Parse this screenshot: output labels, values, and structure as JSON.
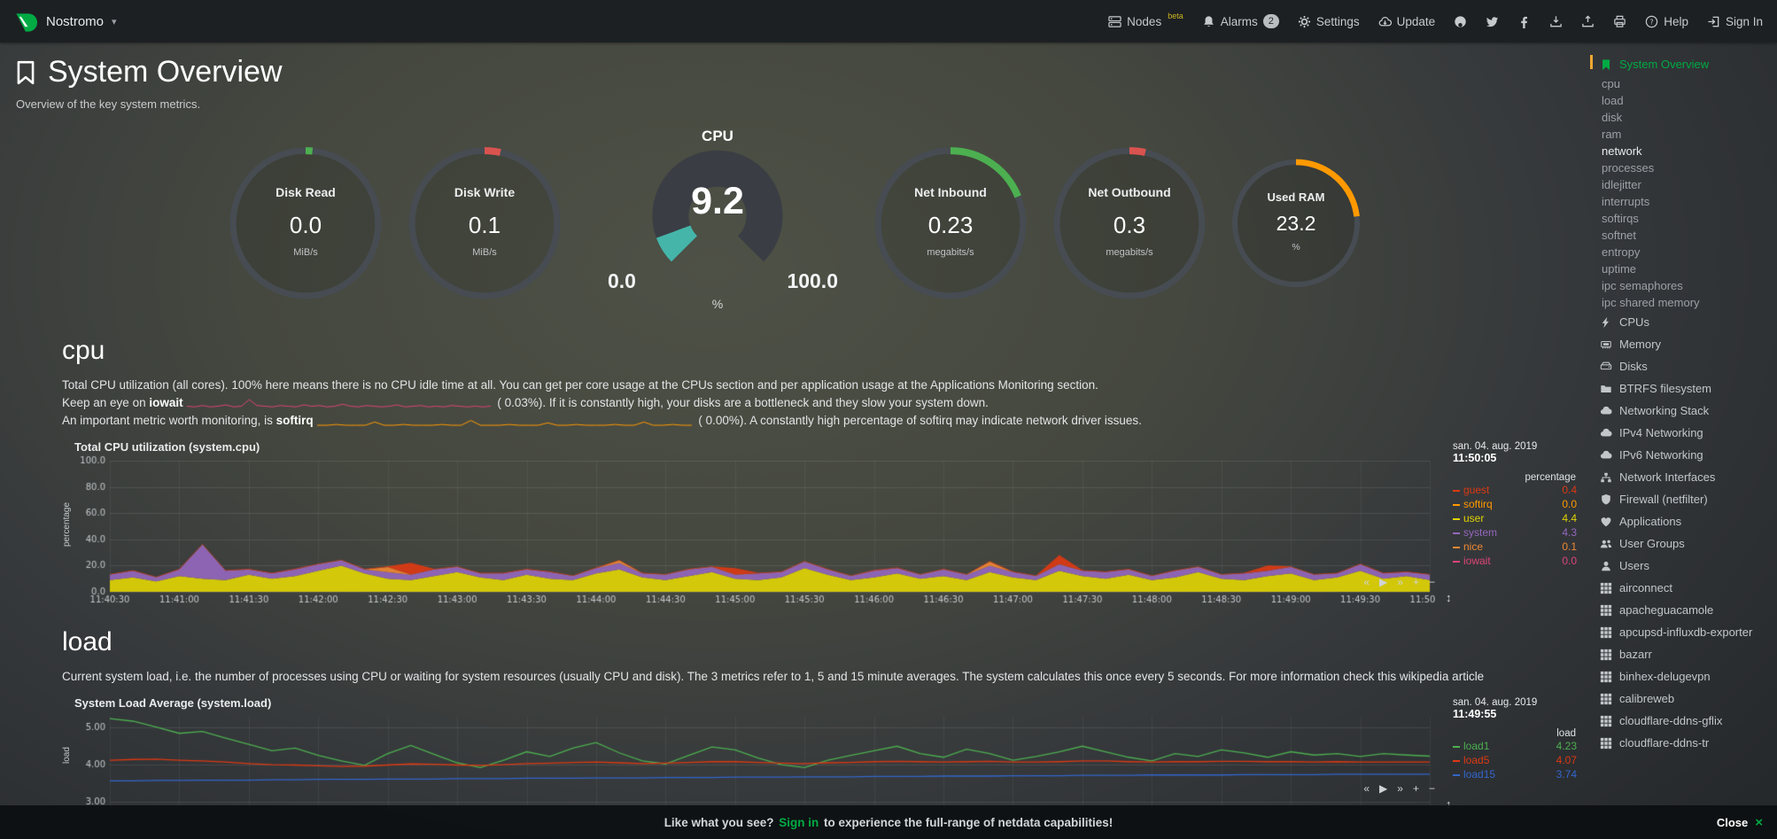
{
  "colors": {
    "accent_green": "#00ab44",
    "gauge_teal": "#45B5AA",
    "warn_orange": "#FF9900",
    "beta_yellow": "#CDB421",
    "scrollbar_amber": "#F0A732"
  },
  "topbar": {
    "brand": "Nostromo",
    "menu": [
      {
        "icon": "server",
        "label": "Nodes",
        "sup": "beta"
      },
      {
        "icon": "bell",
        "label": "Alarms",
        "badge": "2"
      },
      {
        "icon": "gear",
        "label": "Settings"
      },
      {
        "icon": "cloud-download",
        "label": "Update"
      },
      {
        "icon": "github",
        "label": ""
      },
      {
        "icon": "twitter",
        "label": ""
      },
      {
        "icon": "facebook",
        "label": ""
      },
      {
        "icon": "download",
        "label": ""
      },
      {
        "icon": "upload",
        "label": ""
      },
      {
        "icon": "print",
        "label": ""
      },
      {
        "icon": "help",
        "label": "Help"
      },
      {
        "icon": "signin",
        "label": "Sign In"
      }
    ]
  },
  "page": {
    "title": "System Overview",
    "subtitle": "Overview of the key system metrics."
  },
  "gauges": {
    "disk_read": {
      "title": "Disk Read",
      "value": "0.0",
      "unit": "MiB/s",
      "pct": 1.5,
      "color": "#4CAF50"
    },
    "disk_write": {
      "title": "Disk Write",
      "value": "0.1",
      "unit": "MiB/s",
      "pct": 3.5,
      "color": "#D9534F"
    },
    "cpu": {
      "title": "CPU",
      "value": "9.2",
      "min": "0.0",
      "max": "100.0",
      "unit": "%",
      "pct": 9.2,
      "color": "#45B5AA"
    },
    "net_inbound": {
      "title": "Net Inbound",
      "value": "0.23",
      "unit": "megabits/s",
      "pct": 19,
      "color": "#4CAF50"
    },
    "net_outbound": {
      "title": "Net Outbound",
      "value": "0.3",
      "unit": "megabits/s",
      "pct": 3.5,
      "color": "#D9534F"
    },
    "used_ram": {
      "title": "Used RAM",
      "value": "23.2",
      "unit": "%",
      "pct": 23.2,
      "color": "#FF9900"
    }
  },
  "cpu_section": {
    "heading": "cpu",
    "lines": [
      [
        {
          "t": "Total CPU utilization (all cores). 100% here means there is no CPU idle time at all. You can get per core usage at the CPUs section and per application usage at the Applications Monitoring section."
        }
      ],
      [
        {
          "t": "Keep an eye on "
        },
        {
          "t": "iowait",
          "b": true
        },
        {
          "spark": "iowait"
        },
        {
          "t": " ( 0.03%). If it is constantly high, your disks are a bottleneck and they slow your system down."
        }
      ],
      [
        {
          "t": "An important metric worth monitoring, is "
        },
        {
          "t": "softirq",
          "b": true
        },
        {
          "spark": "softirq"
        },
        {
          "t": " ( 0.00%). A constantly high percentage of softirq may indicate network driver issues."
        }
      ]
    ]
  },
  "load_section": {
    "heading": "load",
    "lines": [
      [
        {
          "t": "Current system load, i.e. the number of processes using CPU or waiting for system resources (usually CPU and disk). The 3 metrics refer to 1, 5 and 15 minute averages. The system calculates this once every 5 seconds. For more information check this wikipedia article"
        }
      ]
    ]
  },
  "sparklines": {
    "iowait": {
      "color": "#DD4477",
      "values": [
        0.2,
        0.1,
        0.3,
        0.1,
        0.2,
        0.4,
        0.1,
        0.2,
        1.2,
        0.3,
        0.2,
        0.1,
        0.3,
        0.2,
        0.1,
        0.4,
        0.2,
        0.3,
        0.1,
        0.2,
        0.5,
        0.2,
        0.1,
        0.3,
        0.2,
        0.1,
        0.2,
        0.4,
        0.1,
        0.2,
        0.3,
        0.1,
        0.2,
        0.1,
        0.3,
        0.2,
        0.1,
        0.2,
        0.1,
        0.2
      ]
    },
    "softirq": {
      "color": "#FF9900",
      "values": [
        0,
        0,
        0.1,
        0,
        0,
        0,
        0.4,
        0,
        0,
        0.1,
        0,
        0,
        0,
        0.1,
        0,
        0,
        0.6,
        0,
        0,
        0,
        0.1,
        0,
        0,
        0,
        0.3,
        0,
        0,
        0.1,
        0,
        0,
        0,
        0.1,
        0,
        0,
        0.4,
        0,
        0,
        0.1,
        0,
        0
      ]
    }
  },
  "chart_toolbar": {
    "icons": [
      "«",
      "▶",
      "»",
      "+",
      "−"
    ],
    "resize": "↕"
  },
  "chart_data": [
    {
      "id": "system.cpu",
      "type": "area",
      "stacked": true,
      "stack_order": [
        2,
        3,
        4,
        0,
        1,
        5
      ],
      "title": "Total CPU utilization (system.cpu)",
      "date_label": "san. 04. aug. 2019",
      "time_label": "11:50:05",
      "legend_header": "percentage",
      "ylabel": "percentage",
      "ylim": [
        0,
        100
      ],
      "yticks": [
        0,
        20,
        40,
        60,
        80,
        100
      ],
      "ytick_labels": [
        "0.0",
        "20.0",
        "40.0",
        "60.0",
        "80.0",
        "100.0"
      ],
      "xticks": [
        "11:40:30",
        "11:41:00",
        "11:41:30",
        "11:42:00",
        "11:42:30",
        "11:43:00",
        "11:43:30",
        "11:44:00",
        "11:44:30",
        "11:45:00",
        "11:45:30",
        "11:46:00",
        "11:46:30",
        "11:47:00",
        "11:47:30",
        "11:48:00",
        "11:48:30",
        "11:49:00",
        "11:49:30",
        "11:50:00"
      ],
      "show_xticks": true,
      "series": [
        {
          "name": "guest",
          "color": "#DC3912",
          "value": "0.4",
          "values": [
            0.4,
            0.4,
            0.4,
            0.4,
            0.4,
            0.4,
            0.4,
            0.4,
            0.4,
            0.4,
            0.4,
            0.4,
            0.4,
            9,
            0.4,
            0.4,
            0.4,
            0.4,
            0.4,
            0.4,
            0.4,
            0.4,
            0.4,
            0.4,
            0.4,
            0.4,
            0.4,
            5,
            0.4,
            0.4,
            0.4,
            0.4,
            0.4,
            0.4,
            0.4,
            0.4,
            0.4,
            0.4,
            0.4,
            0.4,
            0.4,
            7,
            0.4,
            0.4,
            0.4,
            0.4,
            0.4,
            0.4,
            0.4,
            0.4,
            4,
            0.4,
            0.4,
            0.4,
            0.4,
            0.4,
            0.4,
            0.4
          ]
        },
        {
          "name": "softirq",
          "color": "#FF9900",
          "value": "0.0",
          "values": [
            0,
            0,
            0,
            0,
            0,
            0,
            0,
            0,
            0,
            0,
            0,
            0,
            0,
            0,
            0,
            0,
            0,
            0,
            0,
            0,
            0,
            0,
            0,
            0,
            0,
            0,
            0,
            0,
            0,
            0,
            0,
            0,
            0,
            0,
            0,
            0,
            0,
            0,
            0,
            0,
            0,
            0,
            0,
            0,
            0,
            0,
            0,
            0,
            0,
            0,
            0,
            0,
            0,
            0,
            0,
            0,
            0,
            0
          ]
        },
        {
          "name": "user",
          "color": "#E0D404",
          "value": "4.4",
          "values": [
            9,
            11,
            8,
            12,
            10,
            9,
            13,
            10,
            12,
            16,
            20,
            14,
            10,
            9,
            12,
            15,
            11,
            9,
            13,
            10,
            9,
            14,
            17,
            11,
            9,
            12,
            15,
            10,
            9,
            11,
            18,
            13,
            9,
            11,
            14,
            10,
            12,
            9,
            15,
            11,
            9,
            16,
            12,
            10,
            13,
            9,
            11,
            15,
            10,
            9,
            12,
            14,
            9,
            11,
            16,
            10,
            12,
            9
          ]
        },
        {
          "name": "system",
          "color": "#9467BD",
          "value": "4.3",
          "values": [
            4,
            5,
            3,
            5,
            26,
            7,
            4,
            4,
            5,
            5,
            4,
            3,
            5,
            4,
            5,
            4,
            3,
            5,
            4,
            5,
            3,
            4,
            5,
            3,
            4,
            5,
            4,
            3,
            5,
            4,
            5,
            4,
            3,
            5,
            4,
            3,
            5,
            4,
            5,
            4,
            3,
            5,
            4,
            5,
            4,
            3,
            5,
            4,
            3,
            5,
            4,
            5,
            4,
            3,
            5,
            4,
            3,
            4
          ]
        },
        {
          "name": "nice",
          "color": "#EE8833",
          "value": "0.1",
          "values": [
            0.1,
            0.1,
            0.1,
            0.1,
            0.1,
            0.1,
            0.1,
            0.1,
            0.1,
            0.1,
            0.1,
            0.1,
            4,
            0.1,
            0.1,
            0.1,
            0.1,
            0.1,
            0.1,
            0.1,
            0.1,
            0.1,
            2,
            0.1,
            0.1,
            0.1,
            0.1,
            0.1,
            0.1,
            0.1,
            0.1,
            0.1,
            0.1,
            0.1,
            0.1,
            0.1,
            0.1,
            0.1,
            3,
            0.1,
            0.1,
            0.1,
            0.1,
            0.1,
            0.1,
            0.1,
            0.1,
            0.1,
            0.1,
            0.1,
            0.1,
            0.1,
            0.1,
            0.1,
            0.1,
            0.1,
            0.1,
            0.1
          ]
        },
        {
          "name": "iowait",
          "color": "#DD4477",
          "value": "0.0",
          "values": [
            0,
            0,
            0,
            0,
            0,
            0,
            0,
            0,
            0.3,
            0,
            0,
            0,
            0,
            0,
            0,
            0,
            0,
            0,
            0,
            0,
            0,
            0,
            0,
            0,
            0,
            0,
            0,
            0,
            0,
            0,
            0,
            0,
            0,
            0.3,
            0,
            0,
            0,
            0,
            0,
            0,
            0,
            0,
            0,
            0,
            0,
            0,
            0,
            0,
            0,
            0,
            0,
            0,
            0,
            0,
            0,
            0,
            0,
            0
          ]
        }
      ]
    },
    {
      "id": "system.load",
      "type": "line",
      "stacked": false,
      "title": "System Load Average (system.load)",
      "date_label": "san. 04. aug. 2019",
      "time_label": "11:49:55",
      "legend_header": "load",
      "ylabel": "load",
      "ylim": [
        2.8,
        5.3
      ],
      "yticks": [
        3,
        4,
        5
      ],
      "ytick_labels": [
        "3.00",
        "4.00",
        "5.00"
      ],
      "xticks": [
        "11:40:30",
        "11:41:00",
        "11:41:30",
        "11:42:00",
        "11:42:30",
        "11:43:00",
        "11:43:30",
        "11:44:00",
        "11:44:30",
        "11:45:00",
        "11:45:30",
        "11:46:00",
        "11:46:30",
        "11:47:00",
        "11:47:30",
        "11:48:00",
        "11:48:30",
        "11:49:00",
        "11:49:30",
        "11:50:00"
      ],
      "show_xticks": false,
      "series": [
        {
          "name": "load1",
          "color": "#4CAF50",
          "value": "4.23",
          "values": [
            5.25,
            5.18,
            5.02,
            4.85,
            4.9,
            4.72,
            4.55,
            4.38,
            4.45,
            4.25,
            4.1,
            3.98,
            4.3,
            4.52,
            4.28,
            4.05,
            3.92,
            4.12,
            4.35,
            4.22,
            4.45,
            4.6,
            4.32,
            4.1,
            4.02,
            4.25,
            4.48,
            4.4,
            4.18,
            4.0,
            3.92,
            4.12,
            4.25,
            4.38,
            4.5,
            4.3,
            4.2,
            4.42,
            4.3,
            4.12,
            4.22,
            4.35,
            4.5,
            4.35,
            4.2,
            4.1,
            4.3,
            4.22,
            4.4,
            4.32,
            4.2,
            4.35,
            4.26,
            4.3,
            4.22,
            4.3,
            4.26,
            4.23
          ]
        },
        {
          "name": "load5",
          "color": "#DC3912",
          "value": "4.07",
          "values": [
            4.12,
            4.14,
            4.15,
            4.12,
            4.1,
            4.07,
            4.03,
            4.0,
            3.99,
            3.97,
            3.95,
            3.96,
            3.99,
            4.02,
            4.01,
            3.99,
            3.98,
            4.0,
            4.03,
            4.04,
            4.06,
            4.07,
            4.05,
            4.03,
            4.04,
            4.06,
            4.08,
            4.08,
            4.06,
            4.04,
            4.03,
            4.05,
            4.06,
            4.08,
            4.09,
            4.08,
            4.07,
            4.08,
            4.09,
            4.07,
            4.07,
            4.08,
            4.1,
            4.1,
            4.08,
            4.07,
            4.08,
            4.08,
            4.09,
            4.09,
            4.08,
            4.08,
            4.07,
            4.08,
            4.07,
            4.07,
            4.07,
            4.07
          ]
        },
        {
          "name": "load15",
          "color": "#3366CC",
          "value": "3.74",
          "values": [
            3.56,
            3.56,
            3.57,
            3.57,
            3.58,
            3.58,
            3.58,
            3.59,
            3.59,
            3.6,
            3.6,
            3.6,
            3.61,
            3.61,
            3.61,
            3.62,
            3.62,
            3.62,
            3.63,
            3.63,
            3.63,
            3.64,
            3.64,
            3.64,
            3.65,
            3.65,
            3.65,
            3.66,
            3.66,
            3.66,
            3.67,
            3.67,
            3.67,
            3.68,
            3.68,
            3.68,
            3.69,
            3.69,
            3.69,
            3.7,
            3.7,
            3.7,
            3.71,
            3.71,
            3.71,
            3.72,
            3.72,
            3.72,
            3.72,
            3.73,
            3.73,
            3.73,
            3.73,
            3.74,
            3.74,
            3.74,
            3.74,
            3.74
          ]
        }
      ]
    }
  ],
  "sidebar": {
    "highlight": "network",
    "sections": [
      {
        "icon": "bookmark",
        "label": "System Overview",
        "active": true,
        "children": [
          "cpu",
          "load",
          "disk",
          "ram",
          "network",
          "processes",
          "idlejitter",
          "interrupts",
          "softirqs",
          "softnet",
          "entropy",
          "uptime",
          "ipc semaphores",
          "ipc shared memory"
        ]
      },
      {
        "icon": "bolt",
        "label": "CPUs"
      },
      {
        "icon": "memory",
        "label": "Memory"
      },
      {
        "icon": "hdd",
        "label": "Disks"
      },
      {
        "icon": "folder",
        "label": "BTRFS filesystem"
      },
      {
        "icon": "cloud",
        "label": "Networking Stack"
      },
      {
        "icon": "cloud",
        "label": "IPv4 Networking"
      },
      {
        "icon": "cloud",
        "label": "IPv6 Networking"
      },
      {
        "icon": "interfaces",
        "label": "Network Interfaces"
      },
      {
        "icon": "shield",
        "label": "Firewall (netfilter)"
      },
      {
        "icon": "heart",
        "label": "Applications"
      },
      {
        "icon": "users",
        "label": "User Groups"
      },
      {
        "icon": "user",
        "label": "Users"
      },
      {
        "icon": "grid",
        "label": "airconnect"
      },
      {
        "icon": "grid",
        "label": "apacheguacamole"
      },
      {
        "icon": "grid",
        "label": "apcupsd-influxdb-exporter"
      },
      {
        "icon": "grid",
        "label": "bazarr"
      },
      {
        "icon": "grid",
        "label": "binhex-delugevpn"
      },
      {
        "icon": "grid",
        "label": "calibreweb"
      },
      {
        "icon": "grid",
        "label": "cloudflare-ddns-gflix"
      },
      {
        "icon": "grid",
        "label": "cloudflare-ddns-tr"
      }
    ]
  },
  "footer": {
    "message_pre": "Like what you see? ",
    "signin": "Sign in",
    "message_post": " to experience the full-range of netdata capabilities!",
    "close_label": "Close",
    "close_icon": "×"
  }
}
